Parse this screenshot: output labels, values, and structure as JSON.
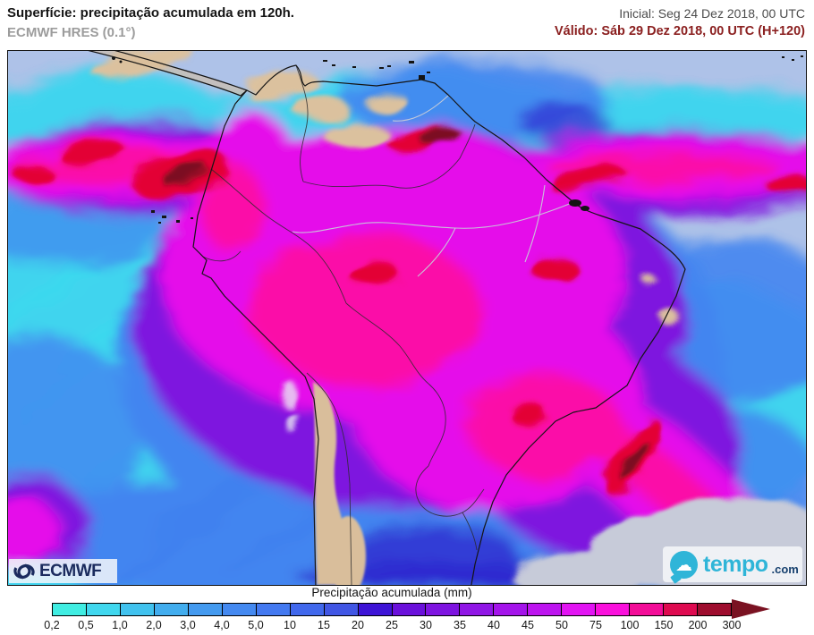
{
  "header": {
    "title": "Superfície: precipitação acumulada em 120h.",
    "model": "ECMWF HRES (0.1°)",
    "init": "Inicial: Seg 24 Dez 2018, 00 UTC",
    "valid": "Válido: Sáb 29 Dez 2018, 00 UTC (H+120)"
  },
  "map": {
    "ecmwf_logo_text": "ECMWF",
    "tempo_logo_name": "tempo",
    "tempo_logo_tld": ".com",
    "icons": {
      "ecmwf": "ecmwf-rings-icon",
      "tempo": "cloud-speech-bubble-icon"
    }
  },
  "legend": {
    "title": "Precipitação acumulada (mm)",
    "tick_labels": [
      "0,2",
      "0,5",
      "1,0",
      "2,0",
      "3,0",
      "4,0",
      "5,0",
      "10",
      "15",
      "20",
      "25",
      "30",
      "35",
      "40",
      "45",
      "50",
      "75",
      "100",
      "150",
      "200",
      "300"
    ],
    "segment_colors": [
      "#40EDE2",
      "#40D7EE",
      "#41C2EE",
      "#42ADEE",
      "#449AEF",
      "#4489F0",
      "#4379F0",
      "#4168EC",
      "#4156E4",
      "#3E14D6",
      "#6A10DA",
      "#7E14E0",
      "#9016E5",
      "#A414EA",
      "#BD14EF",
      "#E214F3",
      "#FA10DC",
      "#F30D98",
      "#DE0A50",
      "#9E0D2E"
    ],
    "arrow_color": "#7A1222"
  },
  "colors": {
    "title-text": "#151515",
    "model-text": "#9C9C9C",
    "init-text": "#4C4C4C",
    "valid-text": "#8B2020",
    "ocean-base": "#AEC2E8",
    "tempo-cyan": "#2FB5D8",
    "tempo-navy": "#16406E",
    "ecmwf-navy": "#1B2B5E"
  }
}
